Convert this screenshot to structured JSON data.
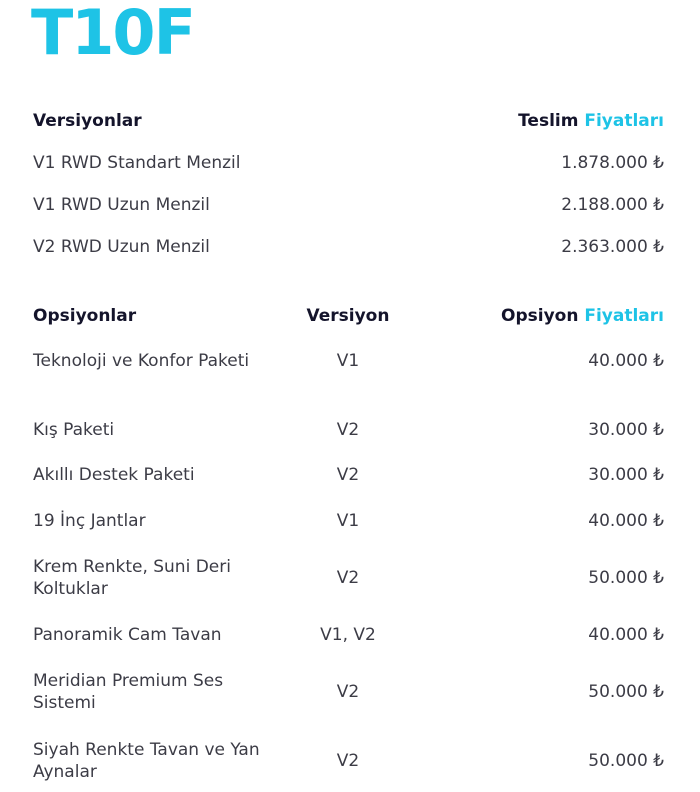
{
  "title": "T10F",
  "colors": {
    "accent": "#1ec3e6",
    "heading": "#14142b",
    "text": "#3c3c46"
  },
  "versions": {
    "header": {
      "name": "Versiyonlar",
      "price_prefix": "Teslim",
      "price_accent": "Fiyatları"
    },
    "rows": [
      {
        "name": "V1 RWD Standart Menzil",
        "price": "1.878.000 ₺"
      },
      {
        "name": "V1 RWD Uzun Menzil",
        "price": "2.188.000 ₺"
      },
      {
        "name": "V2 RWD Uzun Menzil",
        "price": "2.363.000 ₺"
      }
    ]
  },
  "options": {
    "header": {
      "name": "Opsiyonlar",
      "version": "Versiyon",
      "price_prefix": "Opsiyon",
      "price_accent": "Fiyatları"
    },
    "rows": [
      {
        "name": "Teknoloji ve Konfor Paketi",
        "version": "V1",
        "price": "40.000 ₺"
      },
      {
        "name": "Kış Paketi",
        "version": "V2",
        "price": "30.000 ₺"
      },
      {
        "name": "Akıllı Destek Paketi",
        "version": "V2",
        "price": "30.000 ₺"
      },
      {
        "name": "19 İnç Jantlar",
        "version": "V1",
        "price": "40.000 ₺"
      },
      {
        "name": "Krem Renkte, Suni Deri Koltuklar",
        "version": "V2",
        "price": "50.000 ₺"
      },
      {
        "name": "Panoramik Cam Tavan",
        "version": "V1, V2",
        "price": "40.000 ₺"
      },
      {
        "name": "Meridian Premium Ses Sistemi",
        "version": "V2",
        "price": "50.000 ₺"
      },
      {
        "name": "Siyah Renkte Tavan ve Yan Aynalar",
        "version": "V2",
        "price": "50.000 ₺"
      }
    ]
  }
}
